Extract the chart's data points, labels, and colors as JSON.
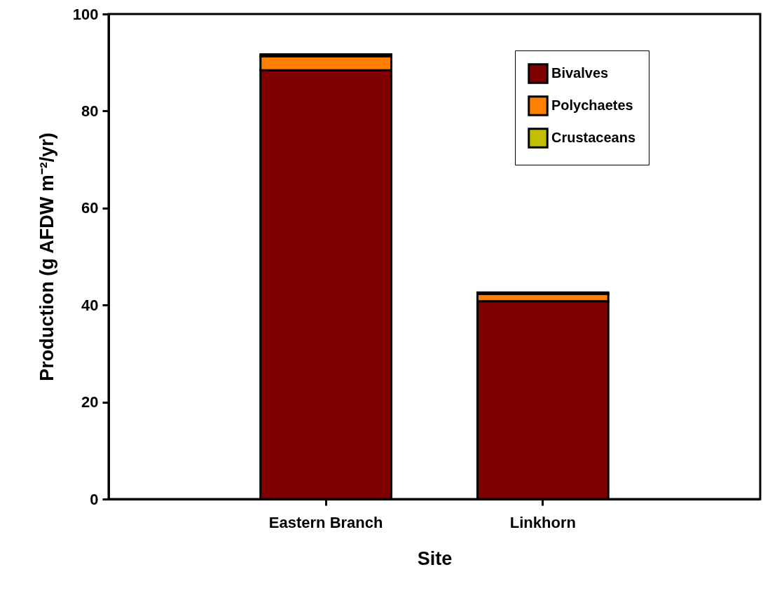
{
  "chart_data": {
    "type": "bar",
    "stacked": true,
    "xlabel": "Site",
    "ylabel": "Production (g AFDW m⁻²/yr)",
    "categories": [
      "Eastern Branch",
      "Linkhorn"
    ],
    "series": [
      {
        "name": "Bivalves",
        "color": "#800000",
        "values": [
          88.4,
          40.8
        ]
      },
      {
        "name": "Polychaetes",
        "color": "#ff8000",
        "values": [
          2.9,
          1.5
        ]
      },
      {
        "name": "Crustaceans",
        "color": "#c0c000",
        "values": [
          0.4,
          0.3
        ]
      }
    ],
    "ylim": [
      0,
      100
    ],
    "yticks": [
      0,
      20,
      40,
      60,
      80,
      100
    ],
    "legend": "top right"
  }
}
